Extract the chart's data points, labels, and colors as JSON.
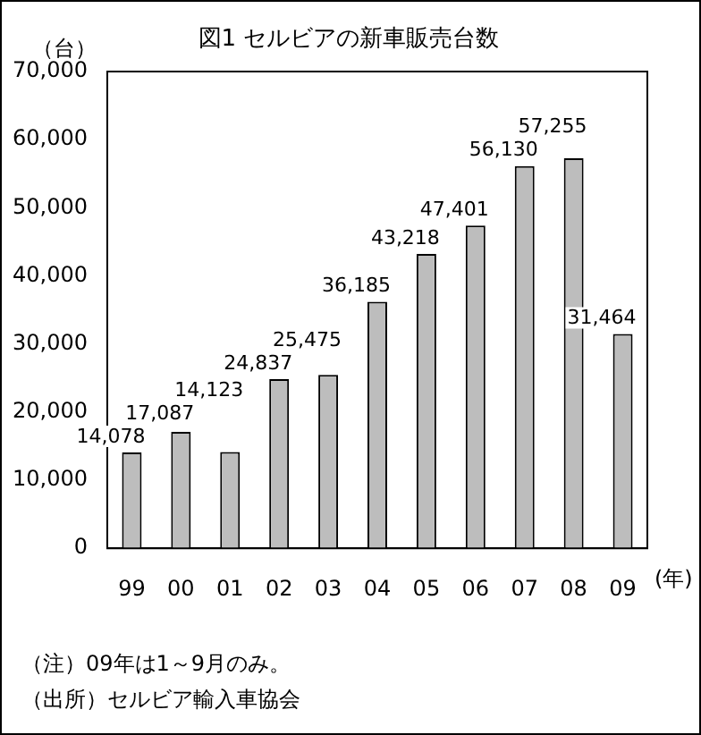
{
  "chart_data": {
    "type": "bar",
    "title": "図1 セルビアの新車販売台数",
    "ylabel": "（台）",
    "xlabel": "(年)",
    "categories": [
      "99",
      "00",
      "01",
      "02",
      "03",
      "04",
      "05",
      "06",
      "07",
      "08",
      "09"
    ],
    "values": [
      14078,
      17087,
      14123,
      24837,
      25475,
      36185,
      43218,
      47401,
      56130,
      57255,
      31464
    ],
    "value_labels": [
      "14,078",
      "17,087",
      "14,123",
      "24,837",
      "25,475",
      "36,185",
      "43,218",
      "47,401",
      "56,130",
      "57,255",
      "31,464"
    ],
    "color": "#bdbdbd",
    "grid": false,
    "ylim": [
      0,
      70000
    ],
    "yticks": [
      0,
      {
        "value": 10000,
        "label": "10,000"
      },
      {
        "value": 20000,
        "label": "20,000"
      },
      {
        "value": 30000,
        "label": "30,000"
      },
      {
        "value": 40000,
        "label": "40,000"
      },
      {
        "value": 50000,
        "label": "50,000"
      },
      {
        "value": 60000,
        "label": "60,000"
      },
      {
        "value": 70000,
        "label": "70,000"
      }
    ],
    "annotations": [
      "（注）09年は1～9月のみ。",
      "（出所）セルビア輸入車協会"
    ]
  }
}
